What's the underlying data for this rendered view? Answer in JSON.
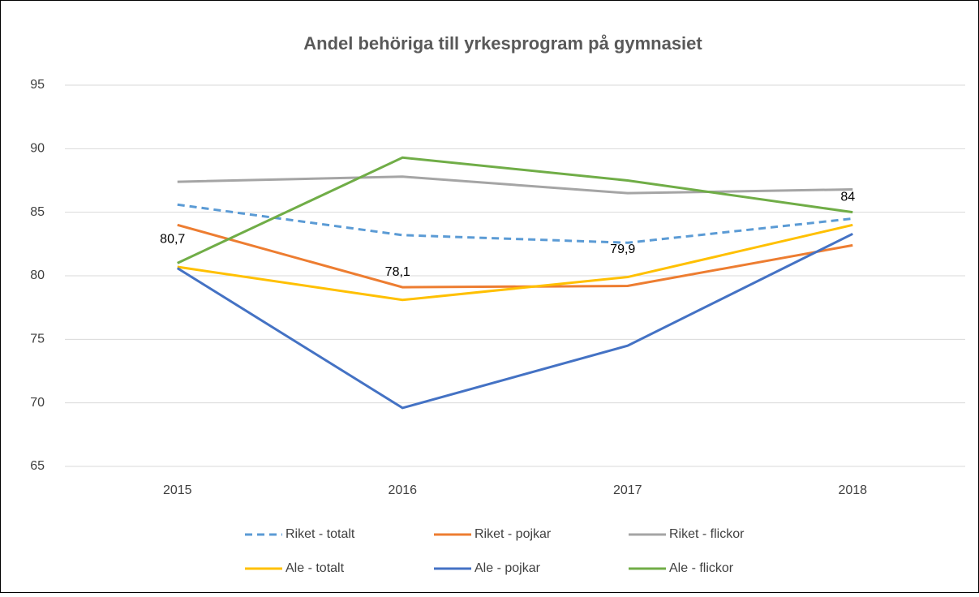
{
  "chart_data": {
    "type": "line",
    "title": "Andel behöriga till yrkesprogram på gymnasiet",
    "categories": [
      "2015",
      "2016",
      "2017",
      "2018"
    ],
    "series": [
      {
        "name": "Riket - totalt",
        "color": "#5b9bd5",
        "dashed": true,
        "values": [
          85.6,
          83.2,
          82.6,
          84.5
        ]
      },
      {
        "name": "Riket - pojkar",
        "color": "#ed7d31",
        "values": [
          84.0,
          79.1,
          79.2,
          82.4
        ]
      },
      {
        "name": "Riket - flickor",
        "color": "#a5a5a5",
        "values": [
          87.4,
          87.8,
          86.5,
          86.8
        ]
      },
      {
        "name": "Ale - totalt",
        "color": "#ffc000",
        "values": [
          80.7,
          78.1,
          79.9,
          84
        ],
        "value_labels": [
          "80,7",
          "78,1",
          "79,9",
          "84"
        ]
      },
      {
        "name": "Ale - pojkar",
        "color": "#4472c4",
        "values": [
          80.6,
          69.6,
          74.5,
          83.3
        ]
      },
      {
        "name": "Ale - flickor",
        "color": "#70ad47",
        "values": [
          81.0,
          89.3,
          87.5,
          85.0
        ]
      }
    ],
    "ylim": [
      65,
      95
    ],
    "yticks": [
      65,
      70,
      75,
      80,
      85,
      90,
      95
    ],
    "grid": true
  }
}
